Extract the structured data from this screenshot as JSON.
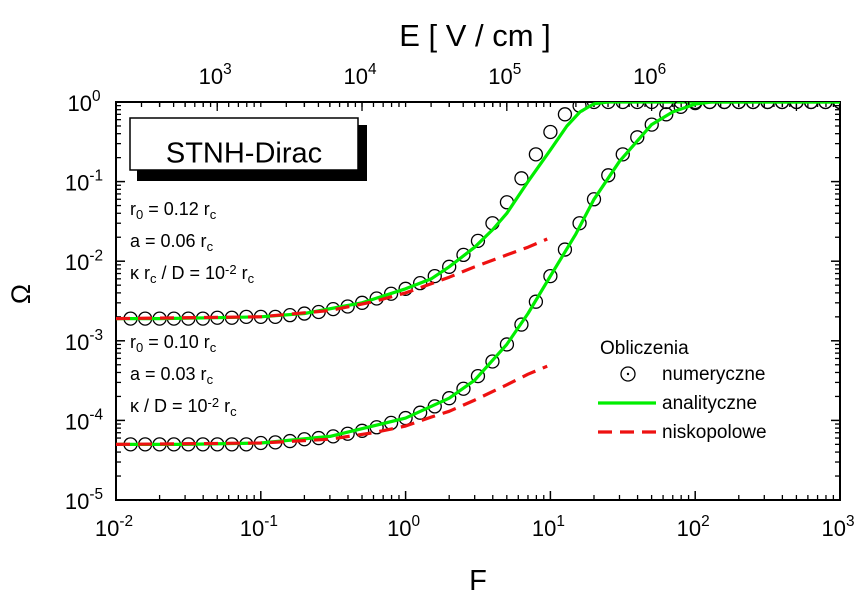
{
  "chart_data": {
    "type": "line",
    "xscale": "log",
    "yscale": "log",
    "xlim": [
      0.01,
      1000
    ],
    "ylim": [
      1e-05,
      1
    ],
    "x_ticks": [
      {
        "base": "10",
        "exp": "-2"
      },
      {
        "base": "10",
        "exp": "-1"
      },
      {
        "base": "10",
        "exp": "0"
      },
      {
        "base": "10",
        "exp": "1"
      },
      {
        "base": "10",
        "exp": "2"
      },
      {
        "base": "10",
        "exp": "3"
      }
    ],
    "y_ticks": [
      {
        "base": "10",
        "exp": "-5"
      },
      {
        "base": "10",
        "exp": "-4"
      },
      {
        "base": "10",
        "exp": "-3"
      },
      {
        "base": "10",
        "exp": "-2"
      },
      {
        "base": "10",
        "exp": "-1"
      },
      {
        "base": "10",
        "exp": "0"
      }
    ],
    "xlabel": "F",
    "ylabel": "Ω",
    "top_axis": {
      "label": "E [ V / cm ]",
      "ticks": [
        {
          "base": "10",
          "exp": "3"
        },
        {
          "base": "10",
          "exp": "4"
        },
        {
          "base": "10",
          "exp": "5"
        },
        {
          "base": "10",
          "exp": "6"
        }
      ]
    },
    "box_label": "STNH-Dirac",
    "annotations": [
      {
        "lines": [
          [
            {
              "t": "r"
            },
            {
              "t": "0",
              "s": "sub"
            },
            {
              "t": " = 0.12 r"
            },
            {
              "t": "c",
              "s": "sub"
            }
          ],
          [
            {
              "t": "a = 0.06 r"
            },
            {
              "t": "c",
              "s": "sub"
            }
          ],
          [
            {
              "t": "κ r"
            },
            {
              "t": "c",
              "s": "sub"
            },
            {
              "t": " / D = 10"
            },
            {
              "t": "-2",
              "s": "sup"
            },
            {
              "t": " r"
            },
            {
              "t": "c",
              "s": "sub"
            }
          ]
        ]
      },
      {
        "lines": [
          [
            {
              "t": "r"
            },
            {
              "t": "0",
              "s": "sub"
            },
            {
              "t": " = 0.10 r"
            },
            {
              "t": "c",
              "s": "sub"
            }
          ],
          [
            {
              "t": "a = 0.03 r"
            },
            {
              "t": "c",
              "s": "sub"
            }
          ],
          [
            {
              "t": "κ / D = 10"
            },
            {
              "t": "-2",
              "s": "sup"
            },
            {
              "t": " r"
            },
            {
              "t": "c",
              "s": "sub"
            }
          ]
        ]
      }
    ],
    "legend": {
      "position": "bottom-right",
      "title": "Obliczenia",
      "items": [
        {
          "label": "numeryczne",
          "style": "circle"
        },
        {
          "label": "analityczne",
          "style": "solid",
          "color": "#00ee00"
        },
        {
          "label": "niskopolowe",
          "style": "dashed",
          "color": "#ee1111"
        }
      ]
    },
    "series": [
      {
        "style": "circle",
        "x": [
          0.0126,
          0.0159,
          0.02,
          0.0251,
          0.0316,
          0.0398,
          0.0501,
          0.0631,
          0.0794,
          0.1,
          0.126,
          0.159,
          0.2,
          0.251,
          0.316,
          0.398,
          0.501,
          0.631,
          0.794,
          1.0,
          1.26,
          1.59,
          2.0,
          2.51,
          3.16,
          3.98,
          5.01,
          6.31,
          7.94,
          10.0,
          12.6,
          15.9,
          20.0,
          25.1,
          31.6,
          39.8,
          50.1,
          63.1,
          79.4,
          100,
          126,
          159,
          200,
          251,
          316,
          398,
          501,
          631,
          794,
          1000
        ],
        "y": [
          0.0019,
          0.0019,
          0.0019,
          0.0019,
          0.0019,
          0.0019,
          0.00195,
          0.00195,
          0.002,
          0.002,
          0.002,
          0.0021,
          0.0022,
          0.0023,
          0.0025,
          0.0027,
          0.003,
          0.0034,
          0.0039,
          0.0045,
          0.0053,
          0.0065,
          0.0085,
          0.012,
          0.018,
          0.03,
          0.055,
          0.11,
          0.22,
          0.42,
          0.7,
          0.9,
          1.0,
          1.0,
          1.0,
          1.0,
          1.0,
          1.0,
          1.0,
          1.0,
          1.0,
          1.0,
          1.0,
          1.0,
          1.0,
          1.0,
          1.0,
          1.0,
          1.0,
          1.0
        ]
      },
      {
        "style": "solid",
        "color": "#00ee00",
        "x": [
          0.01,
          0.02,
          0.05,
          0.1,
          0.2,
          0.5,
          1.0,
          1.5,
          2.0,
          3.0,
          4.0,
          5.0,
          7.0,
          10.0,
          13.0,
          16.0,
          20.0,
          25.0,
          40.0,
          100,
          1000
        ],
        "y": [
          0.0019,
          0.0019,
          0.00195,
          0.002,
          0.0022,
          0.003,
          0.0045,
          0.006,
          0.0085,
          0.015,
          0.025,
          0.04,
          0.1,
          0.25,
          0.5,
          0.75,
          0.95,
          1.0,
          1.0,
          1.0,
          1.0
        ]
      },
      {
        "style": "dashed",
        "color": "#ee1111",
        "x": [
          0.01,
          0.1,
          0.3,
          0.6,
          1.0,
          1.5,
          2.0,
          3.0,
          5.0,
          7.0,
          9.5
        ],
        "y": [
          0.0019,
          0.002,
          0.0024,
          0.0031,
          0.004,
          0.0052,
          0.0063,
          0.0085,
          0.012,
          0.015,
          0.019
        ]
      },
      {
        "style": "circle",
        "x": [
          0.0126,
          0.0159,
          0.02,
          0.0251,
          0.0316,
          0.0398,
          0.0501,
          0.0631,
          0.0794,
          0.1,
          0.126,
          0.159,
          0.2,
          0.251,
          0.316,
          0.398,
          0.501,
          0.631,
          0.794,
          1.0,
          1.26,
          1.59,
          2.0,
          2.51,
          3.16,
          3.98,
          5.01,
          6.31,
          7.94,
          10.0,
          12.6,
          15.9,
          20.0,
          25.1,
          31.6,
          39.8,
          50.1,
          63.1,
          79.4,
          100,
          126,
          159,
          200,
          251,
          316,
          398,
          501,
          631,
          794,
          1000
        ],
        "y": [
          5e-05,
          5e-05,
          5e-05,
          5e-05,
          5e-05,
          5e-05,
          5e-05,
          5e-05,
          5e-05,
          5.2e-05,
          5.3e-05,
          5.5e-05,
          5.8e-05,
          6e-05,
          6.3e-05,
          6.8e-05,
          7.4e-05,
          8.2e-05,
          9.3e-05,
          0.000107,
          0.000125,
          0.00015,
          0.00019,
          0.00025,
          0.00036,
          0.00055,
          0.0009,
          0.0016,
          0.0031,
          0.0065,
          0.014,
          0.03,
          0.06,
          0.12,
          0.22,
          0.36,
          0.52,
          0.7,
          0.87,
          0.97,
          1.0,
          1.0,
          1.0,
          1.0,
          1.0,
          1.0,
          1.0,
          1.0,
          1.0,
          1.0
        ]
      },
      {
        "style": "solid",
        "color": "#00ee00",
        "x": [
          0.01,
          0.03,
          0.1,
          0.3,
          1.0,
          2.0,
          3.0,
          5.0,
          7.0,
          10.0,
          15.0,
          20.0,
          30.0,
          50.0,
          70.0,
          100,
          130,
          160,
          1000
        ],
        "y": [
          5e-05,
          5e-05,
          5.2e-05,
          6.3e-05,
          0.000107,
          0.00019,
          0.00032,
          0.0009,
          0.0022,
          0.0065,
          0.022,
          0.06,
          0.18,
          0.52,
          0.75,
          0.94,
          1.0,
          1.0,
          1.0
        ]
      },
      {
        "style": "dashed",
        "color": "#ee1111",
        "x": [
          0.01,
          0.1,
          0.3,
          0.6,
          1.0,
          1.5,
          2.0,
          3.0,
          5.0,
          7.0,
          9.5
        ],
        "y": [
          5e-05,
          5.2e-05,
          5.8e-05,
          7e-05,
          8.5e-05,
          0.00011,
          0.00013,
          0.00018,
          0.00028,
          0.00038,
          0.00048
        ]
      }
    ]
  }
}
